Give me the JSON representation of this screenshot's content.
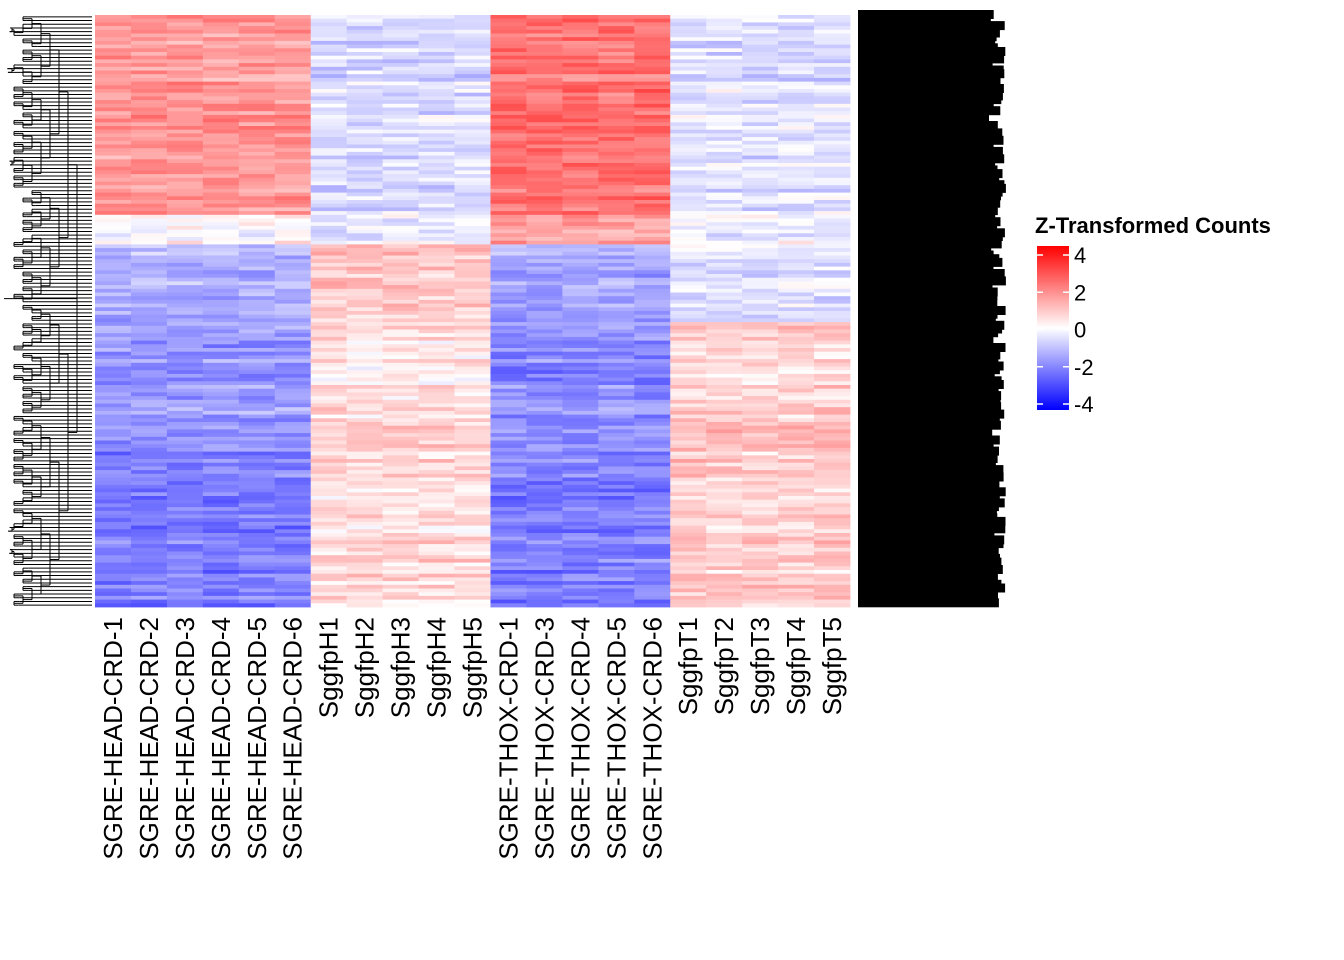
{
  "chart_data": {
    "type": "heatmap",
    "title": "",
    "xlabel": "",
    "ylabel": "",
    "columns": [
      "SGRE-HEAD-CRD-1",
      "SGRE-HEAD-CRD-2",
      "SGRE-HEAD-CRD-3",
      "SGRE-HEAD-CRD-4",
      "SGRE-HEAD-CRD-5",
      "SGRE-HEAD-CRD-6",
      "SggfpH1",
      "SggfpH2",
      "SggfpH3",
      "SggfpH4",
      "SggfpH5",
      "SGRE-THOX-CRD-1",
      "SGRE-THOX-CRD-3",
      "SGRE-THOX-CRD-4",
      "SGRE-THOX-CRD-5",
      "SGRE-THOX-CRD-6",
      "SggfpT1",
      "SggfpT2",
      "SggfpT3",
      "SggfpT4",
      "SggfpT5"
    ],
    "column_groups": [
      {
        "columns": [
          "SGRE-HEAD-CRD-1",
          "SGRE-HEAD-CRD-2",
          "SGRE-HEAD-CRD-3",
          "SGRE-HEAD-CRD-4",
          "SGRE-HEAD-CRD-5",
          "SGRE-HEAD-CRD-6"
        ]
      },
      {
        "columns": [
          "SggfpH1",
          "SggfpH2",
          "SggfpH3",
          "SggfpH4",
          "SggfpH5"
        ]
      },
      {
        "columns": [
          "SGRE-THOX-CRD-1",
          "SGRE-THOX-CRD-3",
          "SGRE-THOX-CRD-4",
          "SGRE-THOX-CRD-5",
          "SGRE-THOX-CRD-6"
        ]
      },
      {
        "columns": [
          "SggfpT1",
          "SggfpT2",
          "SggfpT3",
          "SggfpT4",
          "SggfpT5"
        ]
      }
    ],
    "row_clusters": [
      {
        "fraction_of_rows": 0.34,
        "mean_by_group": [
          1.6,
          -0.6,
          2.2,
          -0.5
        ]
      },
      {
        "fraction_of_rows": 0.05,
        "mean_by_group": [
          0.0,
          -0.4,
          1.4,
          -0.3
        ]
      },
      {
        "fraction_of_rows": 0.13,
        "mean_by_group": [
          -1.2,
          0.9,
          -1.4,
          -0.4
        ]
      },
      {
        "fraction_of_rows": 0.16,
        "mean_by_group": [
          -1.6,
          0.4,
          -1.8,
          0.7
        ]
      },
      {
        "fraction_of_rows": 0.32,
        "mean_by_group": [
          -2.0,
          0.6,
          -2.0,
          0.8
        ]
      }
    ],
    "row_count_estimate": 160,
    "row_dendrogram": true,
    "colorscale": {
      "title": "Z-Transformed Counts",
      "min": -4,
      "max": 4,
      "colors": {
        "low": "#0000ff",
        "mid": "#ffffff",
        "high": "#ff0000"
      },
      "ticks": [
        4,
        2,
        0,
        -2,
        -4
      ],
      "tick_labels": [
        "4",
        "2",
        "0",
        "-2",
        "-4"
      ]
    },
    "legend_position": "right",
    "row_labels_legible": false
  }
}
